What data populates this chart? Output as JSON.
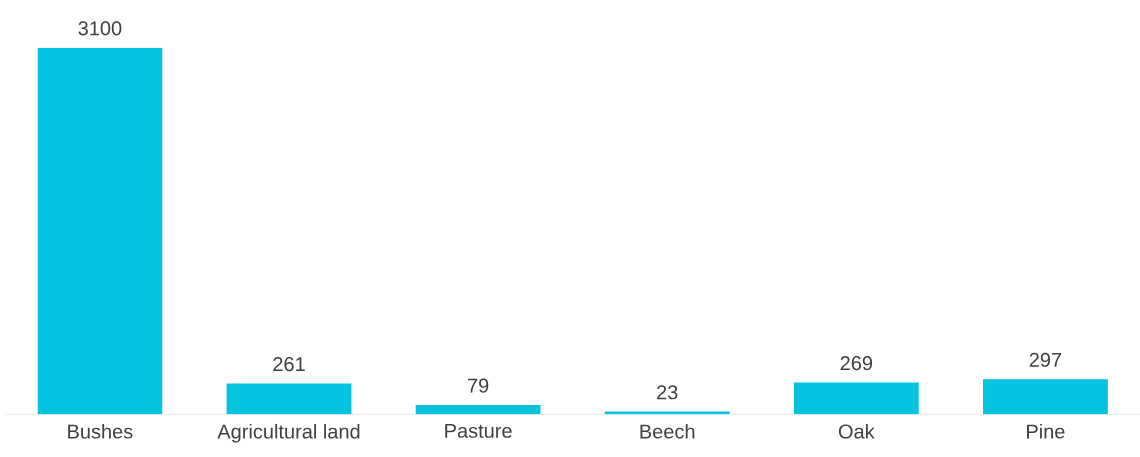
{
  "chart_data": {
    "type": "bar",
    "categories": [
      "Bushes",
      "Agricultural land",
      "Pasture",
      "Beech",
      "Oak",
      "Pine"
    ],
    "values": [
      3100,
      261,
      79,
      23,
      269,
      297
    ],
    "color": "#05c3de",
    "data_labels": true
  }
}
